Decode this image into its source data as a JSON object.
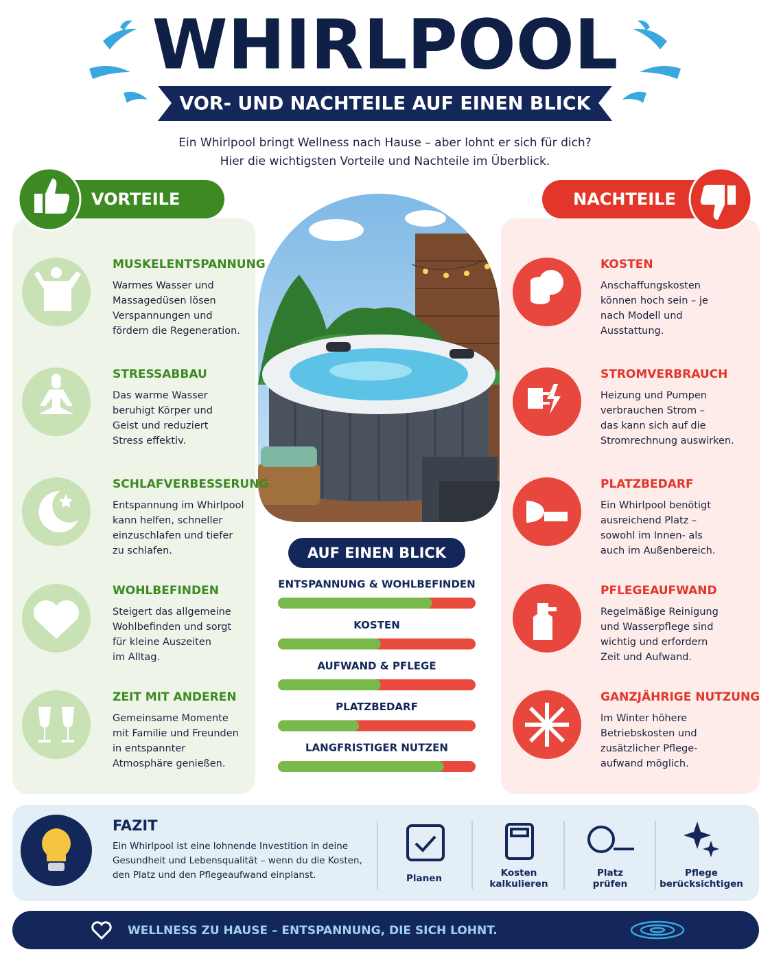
{
  "header": {
    "title": "WHIRLPOOL",
    "subtitle": "VOR- UND NACHTEILE AUF EINEN BLICK",
    "intro": [
      "Ein Whirlpool bringt Wellness nach Hause – aber lohnt er sich für dich?",
      "Hier die wichtigsten Vorteile und Nachteile im Überblick."
    ]
  },
  "pros": {
    "label": "VORTEILE",
    "items": [
      {
        "title": "MUSKELENTSPANNUNG",
        "text": [
          "Warmes Wasser und",
          "Massagedüsen lösen",
          "Verspannungen und",
          "fördern die Regeneration."
        ]
      },
      {
        "title": "STRESSABBAU",
        "text": [
          "Das warme Wasser",
          "beruhigt Körper und",
          "Geist und reduziert",
          "Stress effektiv."
        ]
      },
      {
        "title": "SCHLAFVERBESSERUNG",
        "text": [
          "Entspannung im Whirlpool",
          "kann helfen, schneller",
          "einzuschlafen und tiefer",
          "zu schlafen."
        ]
      },
      {
        "title": "WOHLBEFINDEN",
        "text": [
          "Steigert das allgemeine",
          "Wohlbefinden und sorgt",
          "für kleine Auszeiten",
          "im Alltag."
        ]
      },
      {
        "title": "ZEIT MIT ANDEREN",
        "text": [
          "Gemeinsame Momente",
          "mit Familie und Freunden",
          "in entspannter",
          "Atmosphäre genießen."
        ]
      }
    ]
  },
  "cons": {
    "label": "NACHTEILE",
    "items": [
      {
        "title": "KOSTEN",
        "text": [
          "Anschaffungskosten",
          "können hoch sein – je",
          "nach Modell und",
          "Ausstattung."
        ]
      },
      {
        "title": "STROMVERBRAUCH",
        "text": [
          "Heizung und Pumpen",
          "verbrauchen Strom –",
          "das kann sich auf die",
          "Stromrechnung auswirken."
        ]
      },
      {
        "title": "PLATZBEDARF",
        "text": [
          "Ein Whirlpool benötigt",
          "ausreichend Platz –",
          "sowohl im Innen- als",
          "auch im Außenbereich."
        ]
      },
      {
        "title": "PFLEGEAUFWAND",
        "text": [
          "Regelmäßige Reinigung",
          "und Wasserpflege sind",
          "wichtig und erfordern",
          "Zeit und Aufwand."
        ]
      },
      {
        "title": "GANZJÄHRIGE NUTZUNG",
        "text": [
          "Im Winter höhere",
          "Betriebskosten und",
          "zusätzlicher Pflege-",
          "aufwand möglich."
        ]
      }
    ]
  },
  "glance": {
    "title": "AUF EINEN BLICK",
    "bars": [
      {
        "label": "ENTSPANNUNG & WOHLBEFINDEN",
        "value": 78
      },
      {
        "label": "KOSTEN",
        "value": 52
      },
      {
        "label": "AUFWAND & PFLEGE",
        "value": 52
      },
      {
        "label": "PLATZBEDARF",
        "value": 41
      },
      {
        "label": "LANGFRISTIGER NUTZEN",
        "value": 84
      }
    ]
  },
  "fazit": {
    "title": "FAZIT",
    "text": [
      "Ein Whirlpool ist eine lohnende Investition in deine",
      "Gesundheit und Lebensqualität – wenn du die Kosten,",
      "den Platz und den Pflegeaufwand einplanst."
    ],
    "steps": [
      {
        "label": [
          "Planen"
        ]
      },
      {
        "label": [
          "Kosten",
          "kalkulieren"
        ]
      },
      {
        "label": [
          "Platz",
          "prüfen"
        ]
      },
      {
        "label": [
          "Pflege",
          "berücksichtigen"
        ]
      }
    ]
  },
  "footer": {
    "text": "WELLNESS ZU HAUSE – ENTSPANNUNG, DIE SICH LOHNT."
  }
}
